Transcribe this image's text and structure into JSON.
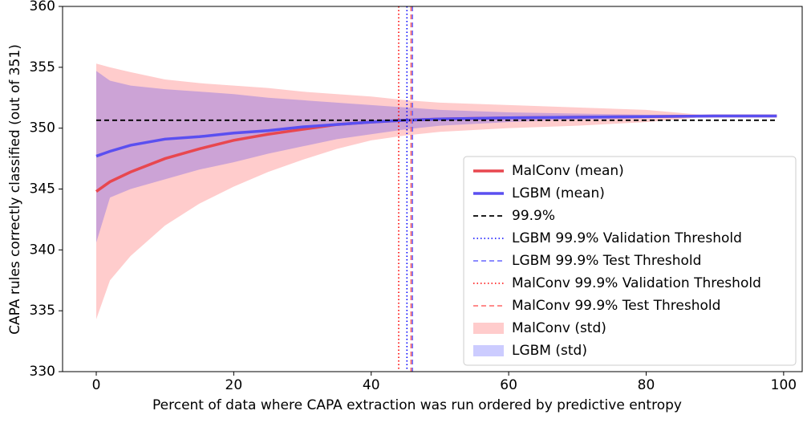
{
  "chart_data": {
    "type": "line",
    "x_label": "Percent of data where CAPA extraction was run ordered by predictive entropy",
    "y_label": "CAPA rules correctly classified (out of 351)",
    "xlim": [
      -4.9,
      102.7
    ],
    "ylim": [
      330,
      360
    ],
    "xticks": [
      0,
      20,
      40,
      60,
      80,
      100
    ],
    "yticks": [
      330,
      335,
      340,
      345,
      350,
      355,
      360
    ],
    "x": [
      0,
      2,
      5,
      10,
      15,
      20,
      25,
      30,
      35,
      40,
      45,
      50,
      60,
      70,
      80,
      90,
      99
    ],
    "series": [
      {
        "name": "MalConv (mean)",
        "color": "#e8474f",
        "values": [
          344.8,
          345.6,
          346.4,
          347.5,
          348.3,
          349.0,
          349.5,
          349.9,
          350.3,
          350.5,
          350.65,
          350.75,
          350.85,
          350.9,
          350.95,
          351,
          351
        ]
      },
      {
        "name": "LGBM (mean)",
        "color": "#5a4ff0",
        "values": [
          347.7,
          348.1,
          348.6,
          349.1,
          349.3,
          349.6,
          349.8,
          350.1,
          350.3,
          350.5,
          350.65,
          350.75,
          350.85,
          350.9,
          350.95,
          351,
          351
        ]
      }
    ],
    "hlines": [
      {
        "name": "99.9%",
        "value": 350.649,
        "color": "#000000",
        "style": "dashed"
      }
    ],
    "vlines": [
      {
        "name": "LGBM 99.9% Validation Threshold",
        "value": 45.2,
        "color": "#0000ff",
        "style": "dotted"
      },
      {
        "name": "LGBM 99.9% Test Threshold",
        "value": 46.0,
        "color": "#6666ff",
        "style": "dashed"
      },
      {
        "name": "MalConv 99.9% Validation Threshold",
        "value": 44.0,
        "color": "#ff0000",
        "style": "dotted"
      },
      {
        "name": "MalConv 99.9% Test Threshold",
        "value": 45.8,
        "color": "#ff6666",
        "style": "dashed"
      }
    ],
    "bands": [
      {
        "name": "MalConv (std)",
        "color": "#ff0000",
        "alpha": 0.2,
        "upper": [
          355.3,
          355.0,
          354.6,
          354.0,
          353.7,
          353.5,
          353.3,
          353.0,
          352.8,
          352.6,
          352.3,
          352.1,
          351.9,
          351.7,
          351.5,
          351,
          351
        ],
        "lower": [
          334.3,
          337.5,
          339.5,
          342.0,
          343.8,
          345.2,
          346.4,
          347.4,
          348.3,
          349.0,
          349.4,
          349.7,
          350.0,
          350.2,
          350.5,
          351,
          351
        ]
      },
      {
        "name": "LGBM (std)",
        "color": "#0000ff",
        "alpha": 0.2,
        "upper": [
          354.7,
          353.9,
          353.5,
          353.2,
          353.0,
          352.8,
          352.5,
          352.3,
          352.1,
          351.9,
          351.7,
          351.5,
          351.3,
          351.2,
          351.1,
          351,
          351
        ],
        "lower": [
          340.6,
          344.3,
          345.0,
          345.8,
          346.6,
          347.2,
          347.9,
          348.5,
          349.1,
          349.5,
          349.9,
          350.2,
          350.5,
          350.7,
          350.8,
          351,
          351
        ]
      }
    ],
    "legend": "lower right"
  }
}
